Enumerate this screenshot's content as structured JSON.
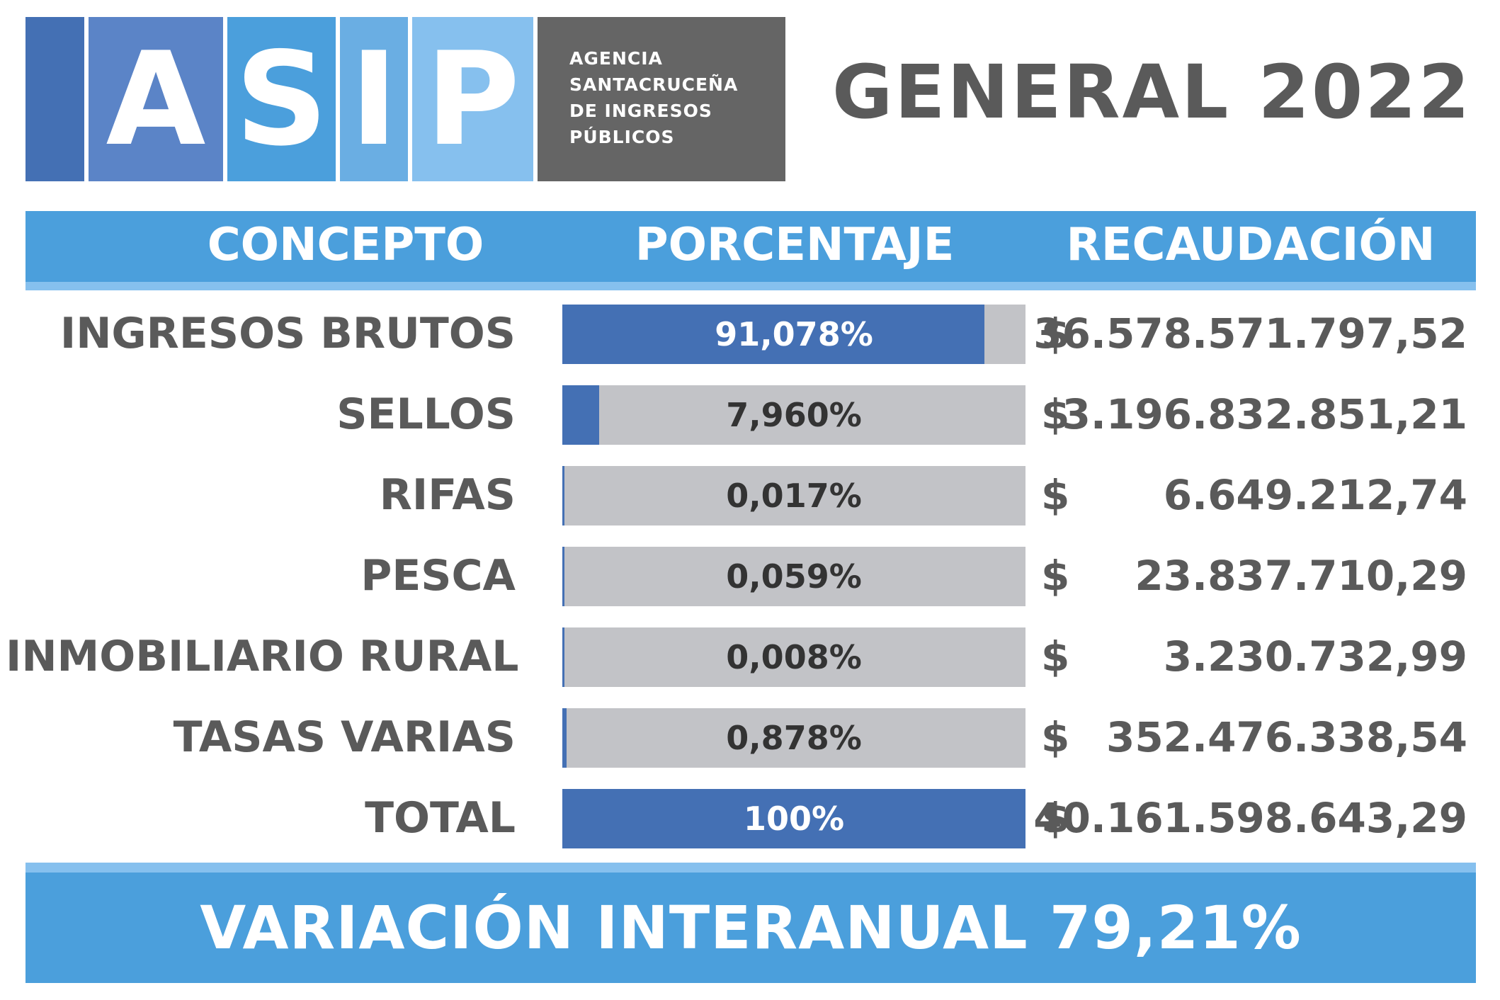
{
  "brand": {
    "letters": [
      "A",
      "S",
      "I",
      "P"
    ],
    "name_lines": [
      "AGENCIA",
      "SANTACRUCEÑA",
      "DE INGRESOS",
      "PÚBLICOS"
    ],
    "colors": {
      "block0": "#4470b4",
      "block1": "#5b84c7",
      "block2": "#4b9fdc",
      "block3": "#6aaee3",
      "block4": "#86c0ee",
      "text_block": "#656565"
    }
  },
  "title": "GENERAL 2022",
  "header": {
    "concept": "CONCEPTO",
    "percentage": "PORCENTAJE",
    "collection": "RECAUDACIÓN"
  },
  "chart_data": {
    "type": "bar",
    "orientation": "horizontal",
    "categories": [
      "INGRESOS BRUTOS",
      "SELLOS",
      "RIFAS",
      "PESCA",
      "INMOBILIARIO RURAL",
      "TASAS VARIAS",
      "TOTAL"
    ],
    "values": [
      91.078,
      7.96,
      0.017,
      0.059,
      0.008,
      0.878,
      100
    ],
    "value_labels": [
      "91,078%",
      "7,960%",
      "0,017%",
      "0,059%",
      "0,008%",
      "0,878%",
      "100%"
    ],
    "currency_symbol": "$",
    "amounts": [
      "36.578.571.797,52",
      "3.196.832.851,21",
      "6.649.212,74",
      "23.837.710,29",
      "3.230.732,99",
      "352.476.338,54",
      "40.161.598.643,29"
    ],
    "xlim": [
      0,
      100
    ],
    "colors": {
      "fill": "#4470b4",
      "track": "#c2c3c7"
    }
  },
  "footer": "VARIACIÓN INTERANUAL 79,21%"
}
